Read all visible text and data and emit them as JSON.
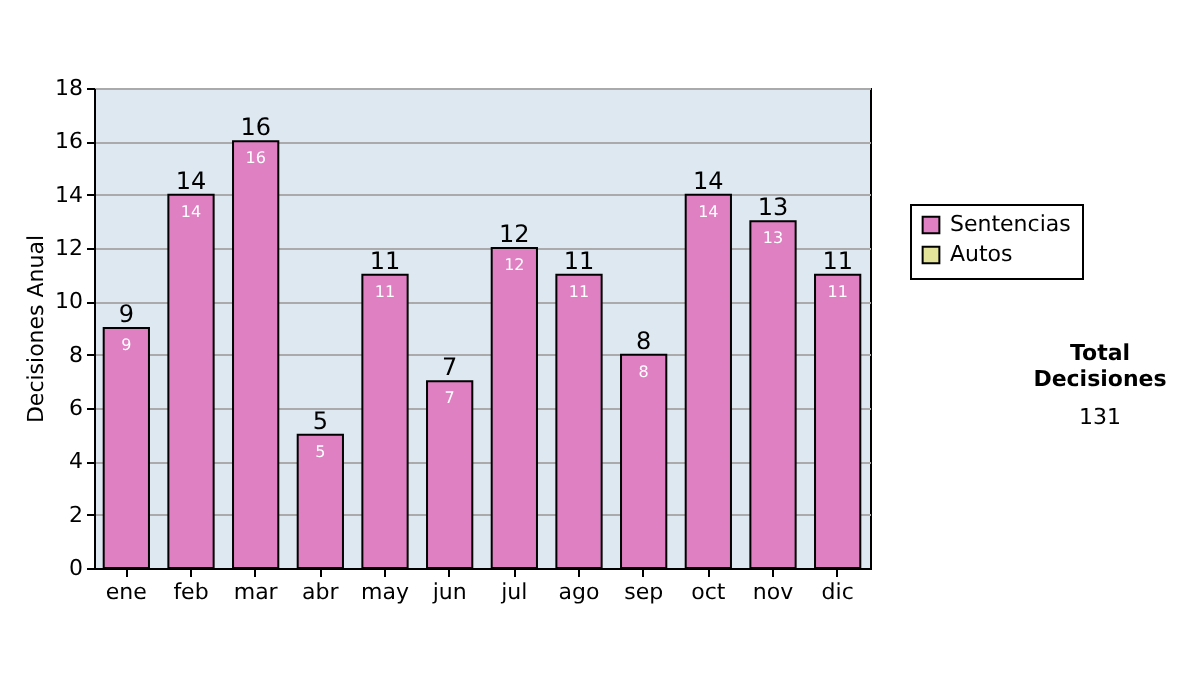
{
  "chart_data": {
    "type": "bar",
    "ylabel": "Decisiones Anual",
    "categories": [
      "ene",
      "feb",
      "mar",
      "abr",
      "may",
      "jun",
      "jul",
      "ago",
      "sep",
      "oct",
      "nov",
      "dic"
    ],
    "series": [
      {
        "name": "Sentencias",
        "color": "#df80c3",
        "values": [
          9,
          14,
          16,
          5,
          11,
          7,
          12,
          11,
          8,
          14,
          13,
          11
        ]
      },
      {
        "name": "Autos",
        "color": "#e3e39a",
        "values": [
          null,
          null,
          null,
          null,
          null,
          null,
          null,
          null,
          null,
          null,
          null,
          null
        ]
      }
    ],
    "ylim": [
      0,
      18
    ],
    "yticks": [
      0,
      2,
      4,
      6,
      8,
      10,
      12,
      14,
      16,
      18
    ],
    "grid": "y",
    "legend": "right",
    "data_labels": true,
    "annotations": [
      "Total Decisiones",
      "131",
      {
        "text": "9",
        "x": "ene",
        "y": 9
      },
      {
        "text": "14",
        "x": "feb",
        "y": 14
      },
      {
        "text": "16",
        "x": "mar",
        "y": 16
      },
      {
        "text": "5",
        "x": "abr",
        "y": 5
      },
      {
        "text": "11",
        "x": "may",
        "y": 11
      },
      {
        "text": "7",
        "x": "jun",
        "y": 7
      },
      {
        "text": "12",
        "x": "jul",
        "y": 12
      },
      {
        "text": "11",
        "x": "ago",
        "y": 11
      },
      {
        "text": "8",
        "x": "sep",
        "y": 8
      },
      {
        "text": "14",
        "x": "oct",
        "y": 14
      },
      {
        "text": "13",
        "x": "nov",
        "y": 13
      },
      {
        "text": "11",
        "x": "dic",
        "y": 11
      }
    ]
  }
}
